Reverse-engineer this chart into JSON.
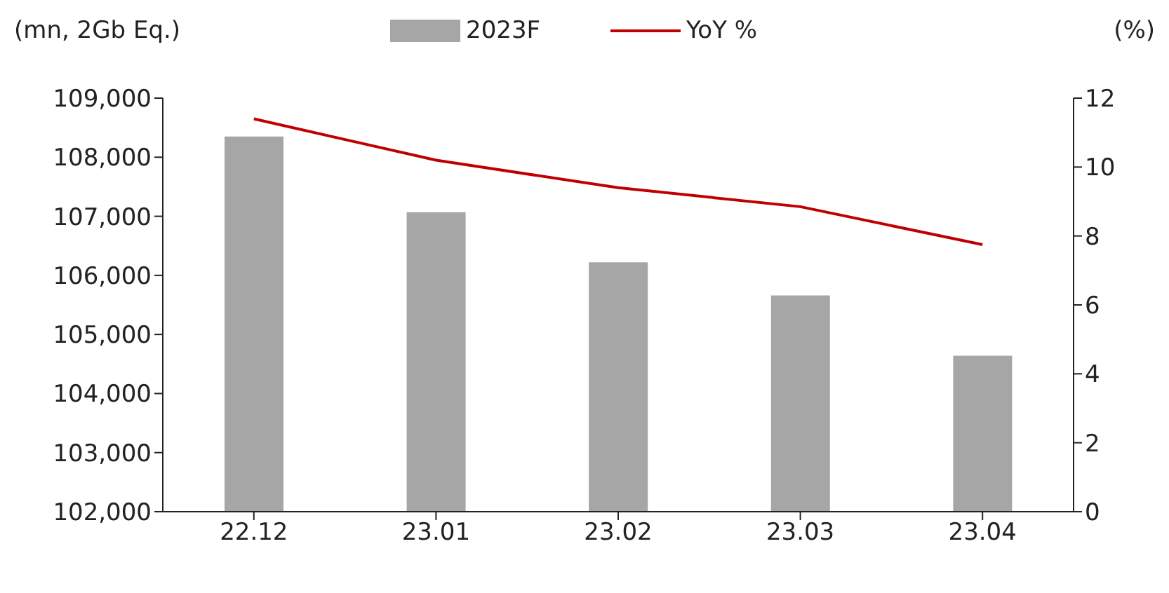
{
  "chart_data": {
    "type": "bar",
    "categories": [
      "22.12",
      "23.01",
      "23.02",
      "23.03",
      "23.04"
    ],
    "ylabel": "(mn, 2Gb Eq.)",
    "y2label": "(%)",
    "series": [
      {
        "name": "2023F",
        "color": "#a6a6a6",
        "values": [
          108350,
          107070,
          106220,
          105660,
          104640
        ]
      },
      {
        "name": "YoY %",
        "type": "line",
        "axis": "y2",
        "color": "#c00000",
        "values": [
          11.4,
          10.2,
          9.4,
          8.85,
          7.75
        ]
      }
    ],
    "ylim": [
      102000,
      109000
    ],
    "yticks": [
      {
        "value": 102000,
        "label": "102,000"
      },
      {
        "value": 103000,
        "label": "103,000"
      },
      {
        "value": 104000,
        "label": "104,000"
      },
      {
        "value": 105000,
        "label": "105,000"
      },
      {
        "value": 106000,
        "label": "106,000"
      },
      {
        "value": 107000,
        "label": "107,000"
      },
      {
        "value": 108000,
        "label": "108,000"
      },
      {
        "value": 109000,
        "label": "109,000"
      }
    ],
    "y2lim": [
      0,
      12
    ],
    "y2ticks": [
      0,
      2,
      4,
      6,
      8,
      10,
      12
    ],
    "grid": false,
    "legend": "top",
    "marker": "none",
    "line_style": "solid"
  }
}
